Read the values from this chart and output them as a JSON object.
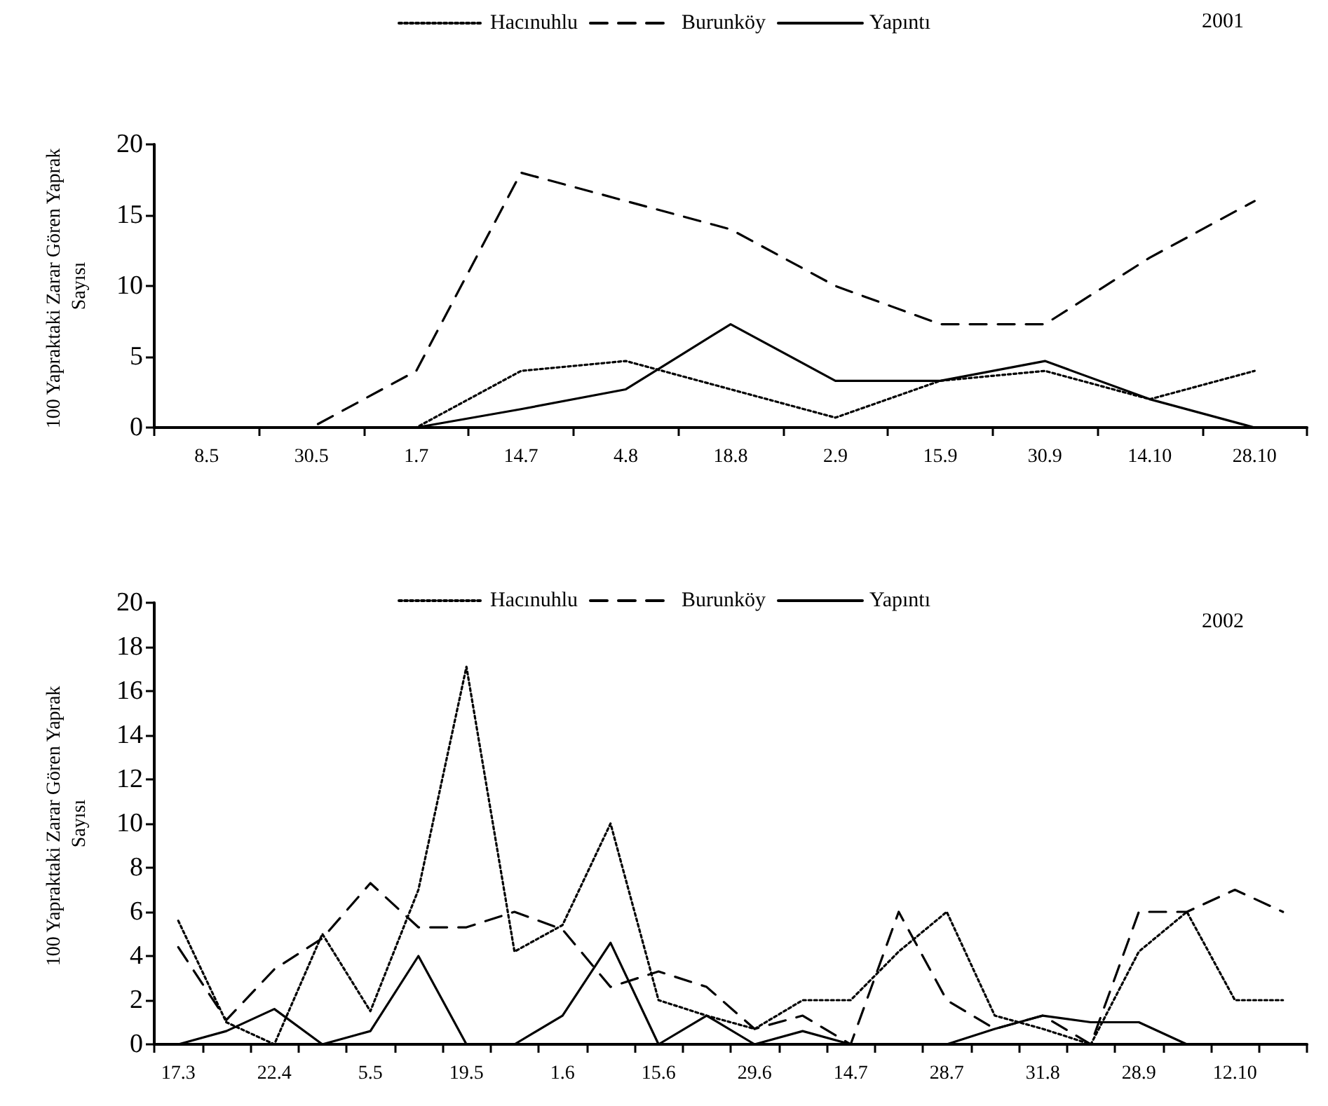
{
  "chart_data": [
    {
      "type": "line",
      "ylabel": "100 Yapraktaki Zarar Gören Yaprak Sayısı",
      "annotations": [
        "2001"
      ],
      "categories": [
        "8.5",
        "30.5",
        "1.7",
        "14.7",
        "4.8",
        "18.8",
        "2.9",
        "15.9",
        "30.9",
        "14.10",
        "28.10"
      ],
      "ylim": [
        0,
        20
      ],
      "yticks": [
        0,
        5,
        10,
        15,
        20
      ],
      "grid": false,
      "legend": "top",
      "marker": "none",
      "series": [
        {
          "name": "Hacınuhlu",
          "color": "#000000",
          "line_style": "dotted",
          "values": [
            0,
            0,
            0,
            4,
            4.7,
            2.7,
            0.7,
            3.3,
            4,
            2,
            4
          ]
        },
        {
          "name": "Burunköy",
          "color": "#000000",
          "line_style": "dashed",
          "values": [
            0,
            0,
            4,
            18,
            16,
            14,
            10,
            7.3,
            7.3,
            12,
            16
          ]
        },
        {
          "name": "Yapıntı",
          "color": "#000000",
          "line_style": "solid",
          "values": [
            0,
            0,
            0,
            1.3,
            2.7,
            7.3,
            3.3,
            3.3,
            4.7,
            2,
            0
          ]
        }
      ]
    },
    {
      "type": "line",
      "ylabel": "100 Yapraktaki Zarar Gören Yaprak Sayısı",
      "annotations": [
        "2002"
      ],
      "categories": [
        "17.3",
        null,
        "22.4",
        null,
        "5.5",
        null,
        "19.5",
        null,
        "1.6",
        null,
        "15.6",
        null,
        "29.6",
        null,
        "14.7",
        null,
        "28.7",
        null,
        "31.8",
        null,
        "28.9",
        null,
        "12.10",
        null
      ],
      "ylim": [
        0,
        20
      ],
      "yticks": [
        0,
        2,
        4,
        6,
        8,
        10,
        12,
        14,
        16,
        18,
        20
      ],
      "grid": false,
      "legend": "top",
      "marker": "none",
      "series": [
        {
          "name": "Hacınuhlu",
          "color": "#000000",
          "line_style": "dotted",
          "values": [
            5.6,
            1,
            0,
            5,
            1.5,
            7,
            17.1,
            4.2,
            5.4,
            10,
            2,
            1.3,
            0.7,
            2,
            2,
            4.2,
            6,
            1.3,
            0.7,
            0,
            4.2,
            6,
            2,
            2
          ]
        },
        {
          "name": "Burunköy",
          "color": "#000000",
          "line_style": "dashed",
          "values": [
            4.4,
            1.1,
            3.4,
            4.8,
            7.3,
            5.3,
            5.3,
            6,
            5.2,
            2.6,
            3.3,
            2.6,
            0.7,
            1.3,
            0,
            6,
            2,
            0.7,
            1.3,
            0,
            6,
            6,
            7,
            6
          ]
        },
        {
          "name": "Yapıntı",
          "color": "#000000",
          "line_style": "solid",
          "values": [
            0,
            0.6,
            1.6,
            0,
            0.6,
            4,
            0,
            0,
            1.3,
            4.6,
            0,
            1.3,
            0,
            0.6,
            0,
            0,
            0,
            0.7,
            1.3,
            1,
            1,
            0,
            0,
            0
          ]
        }
      ]
    }
  ]
}
